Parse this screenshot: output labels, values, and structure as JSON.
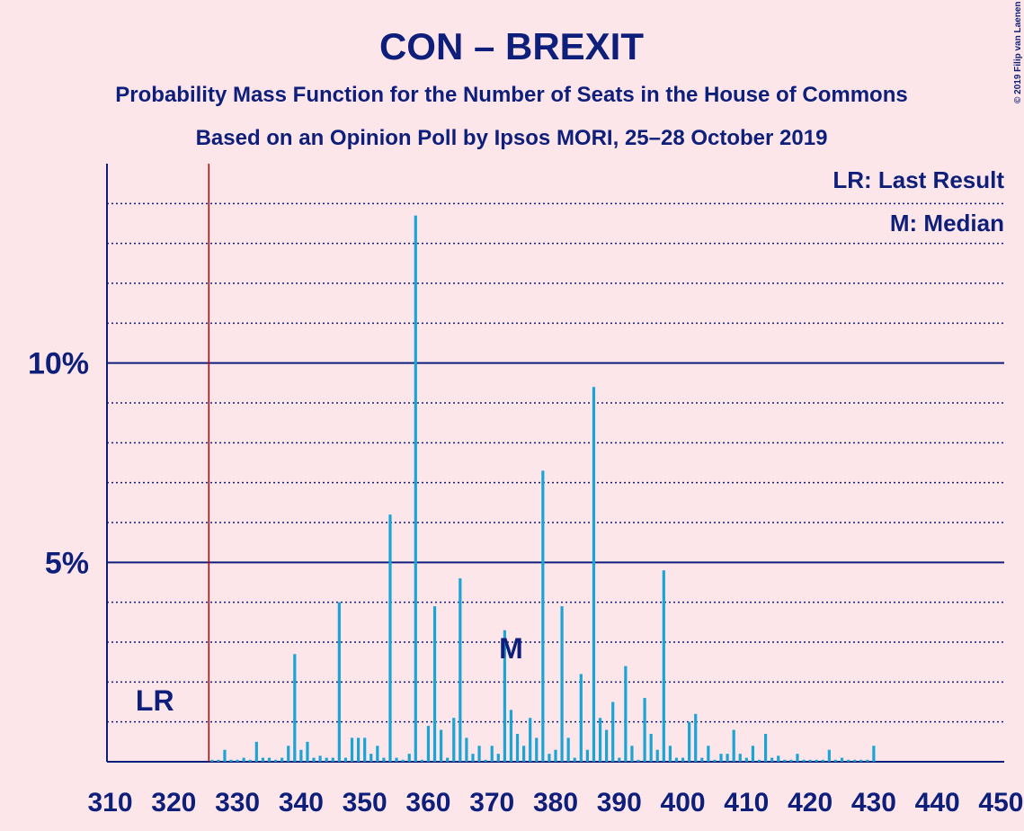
{
  "chart_data": {
    "type": "bar",
    "title": "CON – BREXIT",
    "subtitle": "Probability Mass Function for the Number of Seats in the House of Commons",
    "subtitle2": "Based on an Opinion Poll by Ipsos MORI, 25–28 October 2019",
    "copyright": "© 2019 Filip van Laenen",
    "legend": [
      "LR: Last Result",
      "M: Median"
    ],
    "legend_position": "upper right",
    "last_result": 326,
    "last_result_label": "LR",
    "median": 373,
    "median_label": "M",
    "color": "#1aa5d4",
    "x": [
      310,
      311,
      312,
      313,
      314,
      315,
      316,
      317,
      318,
      319,
      320,
      321,
      322,
      323,
      324,
      325,
      326,
      327,
      328,
      329,
      330,
      331,
      332,
      333,
      334,
      335,
      336,
      337,
      338,
      339,
      340,
      341,
      342,
      343,
      344,
      345,
      346,
      347,
      348,
      349,
      350,
      351,
      352,
      353,
      354,
      355,
      356,
      357,
      358,
      359,
      360,
      361,
      362,
      363,
      364,
      365,
      366,
      367,
      368,
      369,
      370,
      371,
      372,
      373,
      374,
      375,
      376,
      377,
      378,
      379,
      380,
      381,
      382,
      383,
      384,
      385,
      386,
      387,
      388,
      389,
      390,
      391,
      392,
      393,
      394,
      395,
      396,
      397,
      398,
      399,
      400,
      401,
      402,
      403,
      404,
      405,
      406,
      407,
      408,
      409,
      410,
      411,
      412,
      413,
      414,
      415,
      416,
      417,
      418,
      419,
      420,
      421,
      422,
      423,
      424,
      425,
      426,
      427,
      428,
      429,
      430,
      431,
      432,
      433,
      434,
      435,
      436,
      437,
      438,
      439,
      440,
      441,
      442,
      443,
      444,
      445,
      446,
      447,
      448,
      449,
      450
    ],
    "values": [
      0,
      0,
      0,
      0,
      0,
      0,
      0,
      0,
      0,
      0,
      0,
      0,
      0,
      0,
      0,
      0,
      0.05,
      0.05,
      0.3,
      0.05,
      0.05,
      0.1,
      0.05,
      0.5,
      0.1,
      0.1,
      0.05,
      0.1,
      0.4,
      2.7,
      0.3,
      0.5,
      0.1,
      0.15,
      0.1,
      0.1,
      4.0,
      0.1,
      0.6,
      0.6,
      0.6,
      0.2,
      0.4,
      0.1,
      6.2,
      0.1,
      0.05,
      0.2,
      13.7,
      0.05,
      0.9,
      3.9,
      0.8,
      0.1,
      1.1,
      4.6,
      0.6,
      0.2,
      0.4,
      0.05,
      0.4,
      0.2,
      3.3,
      1.3,
      0.7,
      0.4,
      1.1,
      0.6,
      7.3,
      0.2,
      0.3,
      3.9,
      0.6,
      0.1,
      2.2,
      0.3,
      9.4,
      1.1,
      0.8,
      1.5,
      0.1,
      2.4,
      0.4,
      0.05,
      1.6,
      0.7,
      0.3,
      4.8,
      0.4,
      0.1,
      0.1,
      1.0,
      1.2,
      0.1,
      0.4,
      0.05,
      0.2,
      0.2,
      0.8,
      0.2,
      0.1,
      0.4,
      0.05,
      0.7,
      0.1,
      0.15,
      0.05,
      0.05,
      0.2,
      0.05,
      0.05,
      0.05,
      0.05,
      0.3,
      0.05,
      0.1,
      0.05,
      0.05,
      0.05,
      0.05,
      0.4,
      0,
      0,
      0,
      0,
      0,
      0,
      0,
      0,
      0,
      0,
      0,
      0,
      0,
      0,
      0,
      0,
      0,
      0,
      0,
      0
    ],
    "xlim": [
      309.5,
      450.5
    ],
    "xticks": [
      310,
      320,
      330,
      340,
      350,
      360,
      370,
      380,
      390,
      400,
      410,
      420,
      430,
      440,
      450
    ],
    "ylim": [
      0,
      15
    ],
    "yticks": [
      {
        "value": 5,
        "label": "5%"
      },
      {
        "value": 10,
        "label": "10%"
      }
    ],
    "minor_yticks": [
      1,
      2,
      3,
      4,
      6,
      7,
      8,
      9,
      11,
      12,
      13,
      14
    ],
    "grid": true
  }
}
